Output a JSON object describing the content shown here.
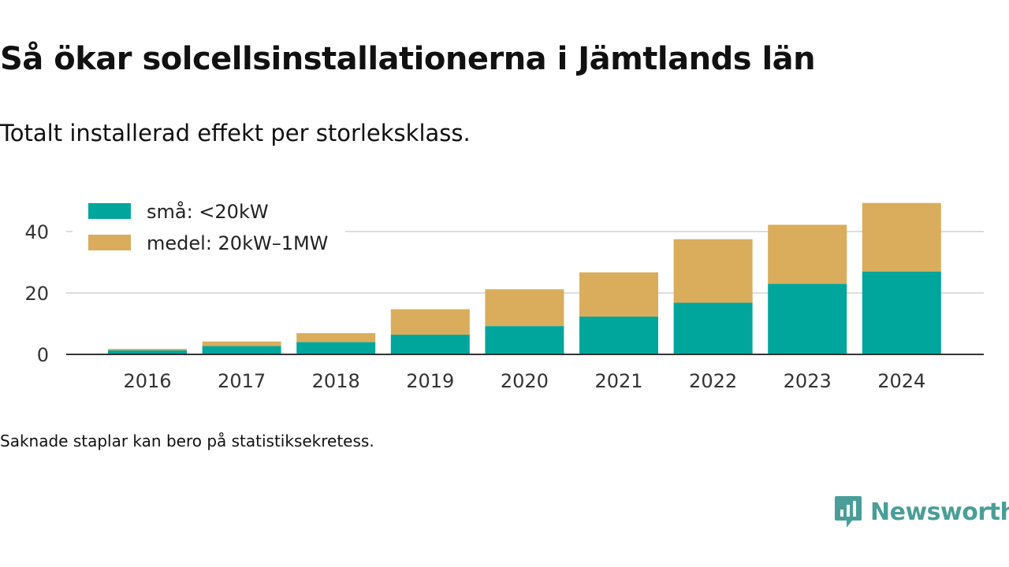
{
  "chart_data": {
    "type": "bar",
    "stacked": true,
    "title": "Så ökar solcellsinstallationerna i Jämtlands län",
    "subtitle": "Totalt installerad effekt per storleksklass.",
    "categories": [
      "2016",
      "2017",
      "2018",
      "2019",
      "2020",
      "2021",
      "2022",
      "2023",
      "2024"
    ],
    "series": [
      {
        "name": "små: <20kW",
        "color": "#00a59b",
        "values": [
          1.3,
          2.7,
          4.0,
          6.4,
          9.2,
          12.3,
          16.8,
          23.0,
          27.0
        ]
      },
      {
        "name": "medel: 20kW–1MW",
        "color": "#d9ad5b",
        "values": [
          0.5,
          1.5,
          2.9,
          8.3,
          12.0,
          14.4,
          20.7,
          19.2,
          22.3
        ]
      }
    ],
    "y_ticks": [
      0,
      20,
      40
    ],
    "ylim": [
      0,
      50
    ],
    "grid": true,
    "legend_position": "top-left"
  },
  "footnote": "Saknade staplar kan bero på statistiksekretess.",
  "brand": {
    "name": "Newsworthy",
    "icon": "newsworthy-logo-icon",
    "color": "#4a9e98"
  }
}
